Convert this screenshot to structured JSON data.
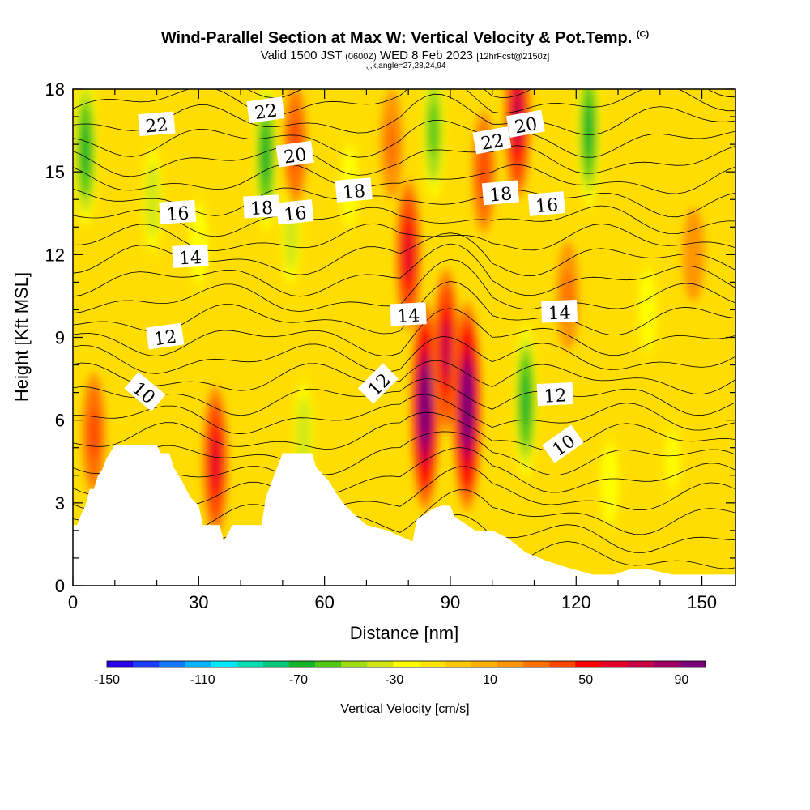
{
  "header": {
    "title": "Wind-Parallel Section at Max W: Vertical Velocity & Pot.Temp.",
    "copyright": "(C)",
    "valid_prefix": "Valid 1500 JST",
    "valid_z": "(0600Z)",
    "valid_date": "WED 8 Feb 2023",
    "forecast": "[12hrFcst@2150z]",
    "indices": "i,j,k,angle=27,28,24,94"
  },
  "chart_data": {
    "type": "heatmap",
    "xlabel": "Distance [nm]",
    "ylabel": "Height [Kft MSL]",
    "xlim": [
      0,
      158
    ],
    "ylim": [
      0,
      18
    ],
    "x_ticks": [
      "0",
      "30",
      "60",
      "90",
      "120",
      "150"
    ],
    "y_ticks": [
      "0",
      "3",
      "6",
      "9",
      "12",
      "15",
      "18"
    ],
    "colorbar": {
      "label": "Vertical Velocity [cm/s]",
      "range": [
        -150,
        100
      ],
      "tick_labels": [
        "-150",
        "-110",
        "-70",
        "-30",
        "10",
        "50",
        "90"
      ],
      "colors": [
        "#2800e8",
        "#1c3cff",
        "#1478ff",
        "#00b4ff",
        "#00e8ff",
        "#00dcb4",
        "#00c878",
        "#14b428",
        "#50c814",
        "#a0dc14",
        "#d2e614",
        "#ffff00",
        "#ffe400",
        "#ffc800",
        "#ffb000",
        "#ff9600",
        "#ff7000",
        "#ff4600",
        "#ff0000",
        "#e60028",
        "#c80046",
        "#a00064",
        "#780078"
      ]
    },
    "terrain_kft": [
      [
        0,
        2.2
      ],
      [
        1,
        2.2
      ],
      [
        2,
        2.6
      ],
      [
        3,
        2.9
      ],
      [
        4,
        3.5
      ],
      [
        5,
        3.5
      ],
      [
        6,
        4.0
      ],
      [
        7,
        4.2
      ],
      [
        8,
        4.6
      ],
      [
        10,
        5.1
      ],
      [
        16,
        5.1
      ],
      [
        20,
        5.1
      ],
      [
        21,
        4.8
      ],
      [
        23,
        4.8
      ],
      [
        24,
        4.3
      ],
      [
        26,
        3.8
      ],
      [
        28,
        3.2
      ],
      [
        30,
        2.9
      ],
      [
        31,
        2.2
      ],
      [
        35,
        2.2
      ],
      [
        36,
        1.6
      ],
      [
        38,
        2.2
      ],
      [
        45,
        2.2
      ],
      [
        46,
        3.2
      ],
      [
        48,
        4.0
      ],
      [
        50,
        4.8
      ],
      [
        57,
        4.8
      ],
      [
        58,
        4.3
      ],
      [
        61,
        3.8
      ],
      [
        63,
        3.3
      ],
      [
        65,
        2.9
      ],
      [
        67,
        2.6
      ],
      [
        70,
        2.2
      ],
      [
        75,
        2.0
      ],
      [
        78,
        1.8
      ],
      [
        81,
        1.6
      ],
      [
        82,
        2.4
      ],
      [
        84,
        2.6
      ],
      [
        86,
        2.8
      ],
      [
        88,
        2.9
      ],
      [
        90,
        2.9
      ],
      [
        91,
        2.5
      ],
      [
        94,
        2.2
      ],
      [
        96,
        2.0
      ],
      [
        100,
        2.0
      ],
      [
        104,
        1.7
      ],
      [
        108,
        1.2
      ],
      [
        113,
        0.9
      ],
      [
        117,
        0.7
      ],
      [
        124,
        0.4
      ],
      [
        129,
        0.4
      ],
      [
        133,
        0.6
      ],
      [
        137,
        0.6
      ],
      [
        143,
        0.4
      ],
      [
        158,
        0.4
      ]
    ],
    "isentrope_labels": [
      "22",
      "22",
      "20",
      "18",
      "16",
      "16",
      "14",
      "12",
      "10",
      "22",
      "20",
      "18",
      "18",
      "16",
      "14",
      "14",
      "12",
      "12",
      "10"
    ],
    "velocity_features": [
      {
        "x": 3,
        "y": 15.8,
        "w": -70
      },
      {
        "x": 19,
        "y": 14.0,
        "w": -40
      },
      {
        "x": 30,
        "y": 12.4,
        "w": -30
      },
      {
        "x": 46,
        "y": 15.6,
        "w": -70
      },
      {
        "x": 52,
        "y": 12.8,
        "w": -40
      },
      {
        "x": 55,
        "y": 5.5,
        "w": -40
      },
      {
        "x": 66,
        "y": 14.5,
        "w": -30
      },
      {
        "x": 86,
        "y": 16.5,
        "w": -60
      },
      {
        "x": 108,
        "y": 6.7,
        "w": -70
      },
      {
        "x": 123,
        "y": 16.5,
        "w": -70
      },
      {
        "x": 128,
        "y": 3.7,
        "w": -30
      },
      {
        "x": 137,
        "y": 10.0,
        "w": -30
      },
      {
        "x": 143,
        "y": 4.6,
        "w": -20
      },
      {
        "x": 5,
        "y": 5.5,
        "w": 40
      },
      {
        "x": 34,
        "y": 4.5,
        "w": 60
      },
      {
        "x": 53,
        "y": 16.0,
        "w": 40
      },
      {
        "x": 76,
        "y": 16.0,
        "w": 30
      },
      {
        "x": 80,
        "y": 12.0,
        "w": 60
      },
      {
        "x": 84,
        "y": 6.5,
        "w": 100
      },
      {
        "x": 89,
        "y": 8.5,
        "w": 70
      },
      {
        "x": 94,
        "y": 6.5,
        "w": 100
      },
      {
        "x": 98,
        "y": 15.0,
        "w": 40
      },
      {
        "x": 106,
        "y": 17.0,
        "w": 70
      },
      {
        "x": 118,
        "y": 10.5,
        "w": 30
      },
      {
        "x": 148,
        "y": 12.0,
        "w": 20
      }
    ]
  }
}
